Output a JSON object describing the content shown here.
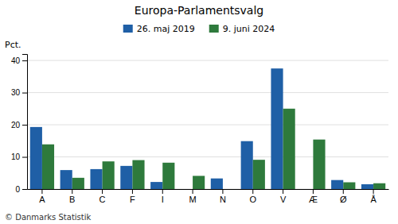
{
  "chart_data": {
    "type": "bar",
    "title": "Europa-Parlamentsvalg",
    "ylabel": "Pct.",
    "categories": [
      "A",
      "B",
      "C",
      "F",
      "I",
      "M",
      "N",
      "O",
      "V",
      "Æ",
      "Ø",
      "Å"
    ],
    "series": [
      {
        "name": "26. maj 2019",
        "color": "#1f5fa6",
        "values": [
          19.3,
          5.9,
          6.2,
          7.2,
          2.2,
          0.0,
          3.3,
          14.9,
          37.5,
          0.0,
          2.8,
          1.5
        ]
      },
      {
        "name": "9. juni 2024",
        "color": "#2e7a3c",
        "values": [
          13.9,
          3.5,
          8.6,
          9.0,
          8.2,
          4.1,
          0.0,
          9.1,
          25.0,
          15.4,
          2.1,
          1.8
        ]
      }
    ],
    "ylim": [
      0,
      42
    ],
    "yticks": [
      0,
      10,
      20,
      30,
      40
    ],
    "grid": true,
    "legend": "top",
    "annotations": [
      "© Danmarks Statistik"
    ]
  }
}
